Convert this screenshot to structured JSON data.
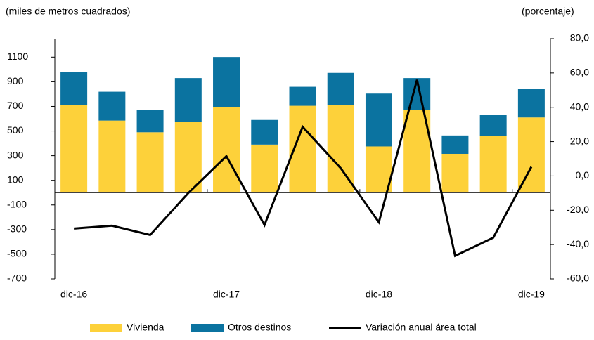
{
  "chart_data": {
    "type": "bar",
    "y_label": "(miles de metros cuadrados)",
    "y2_label": "(porcentaje)",
    "categories": [
      "dic-16",
      null,
      null,
      null,
      "dic-17",
      null,
      null,
      null,
      "dic-18",
      null,
      null,
      null,
      "dic-19"
    ],
    "stacked": true,
    "series": [
      {
        "name": "Vivienda",
        "color": "#fdd13a",
        "type": "bar",
        "values": [
          710,
          585,
          490,
          575,
          695,
          390,
          705,
          710,
          375,
          670,
          315,
          460,
          610
        ]
      },
      {
        "name": "Otros destinos",
        "color": "#0b73a0",
        "type": "bar",
        "values": [
          270,
          234,
          182,
          355,
          406,
          200,
          154,
          262,
          429,
          260,
          149,
          169,
          234
        ]
      },
      {
        "name": "Variación anual área total",
        "color": "#000000",
        "type": "line",
        "axis": "y2",
        "values": [
          -30.7,
          -29,
          -34.4,
          -10,
          11.5,
          -28.6,
          28.6,
          4.5,
          -27,
          56,
          -46.6,
          -36,
          5.3
        ]
      }
    ],
    "ylim": [
      -700,
      1250
    ],
    "yticks": [
      -700,
      -500,
      -300,
      -100,
      100,
      300,
      500,
      700,
      900,
      1100
    ],
    "y2lim": [
      -60,
      80
    ],
    "y2ticks": [
      {
        "value": -60,
        "label": "-60,0"
      },
      {
        "value": -40,
        "label": "-40,0"
      },
      {
        "value": -20,
        "label": "-20,0"
      },
      {
        "value": 0,
        "label": "0,0"
      },
      {
        "value": 20,
        "label": "20,0"
      },
      {
        "value": 40,
        "label": "40,0"
      },
      {
        "value": 60,
        "label": "60,0"
      },
      {
        "value": 80,
        "label": "80,0"
      }
    ],
    "legend": "bottom"
  }
}
